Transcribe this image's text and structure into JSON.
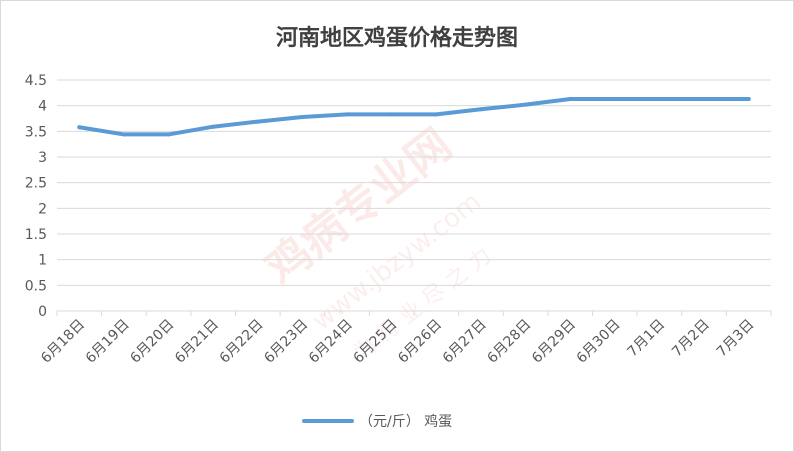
{
  "chart_data": {
    "type": "line",
    "title": "河南地区鸡蛋价格走势图",
    "categories": [
      "6月18日",
      "6月19日",
      "6月20日",
      "6月21日",
      "6月22日",
      "6月23日",
      "6月24日",
      "6月25日",
      "6月26日",
      "6月27日",
      "6月28日",
      "6月29日",
      "6月30日",
      "7月1日",
      "7月2日",
      "7月3日"
    ],
    "y_ticks": [
      "0",
      "0.5",
      "1",
      "1.5",
      "2",
      "2.5",
      "3",
      "3.5",
      "4",
      "4.5"
    ],
    "ylim": [
      0,
      4.5
    ],
    "grid": true,
    "legend_position": "bottom",
    "series": [
      {
        "name": "（元/斤） 鸡蛋",
        "color": "#5b9bd5",
        "values": [
          3.58,
          3.44,
          3.44,
          3.59,
          3.69,
          3.78,
          3.83,
          3.83,
          3.83,
          3.93,
          4.02,
          4.13,
          4.13,
          4.13,
          4.13,
          4.13
        ]
      }
    ]
  },
  "watermark": {
    "brand": "鸡病专业网",
    "url": "www.jbzyw.com",
    "slogan": "为 行 业 尽 之 力"
  }
}
